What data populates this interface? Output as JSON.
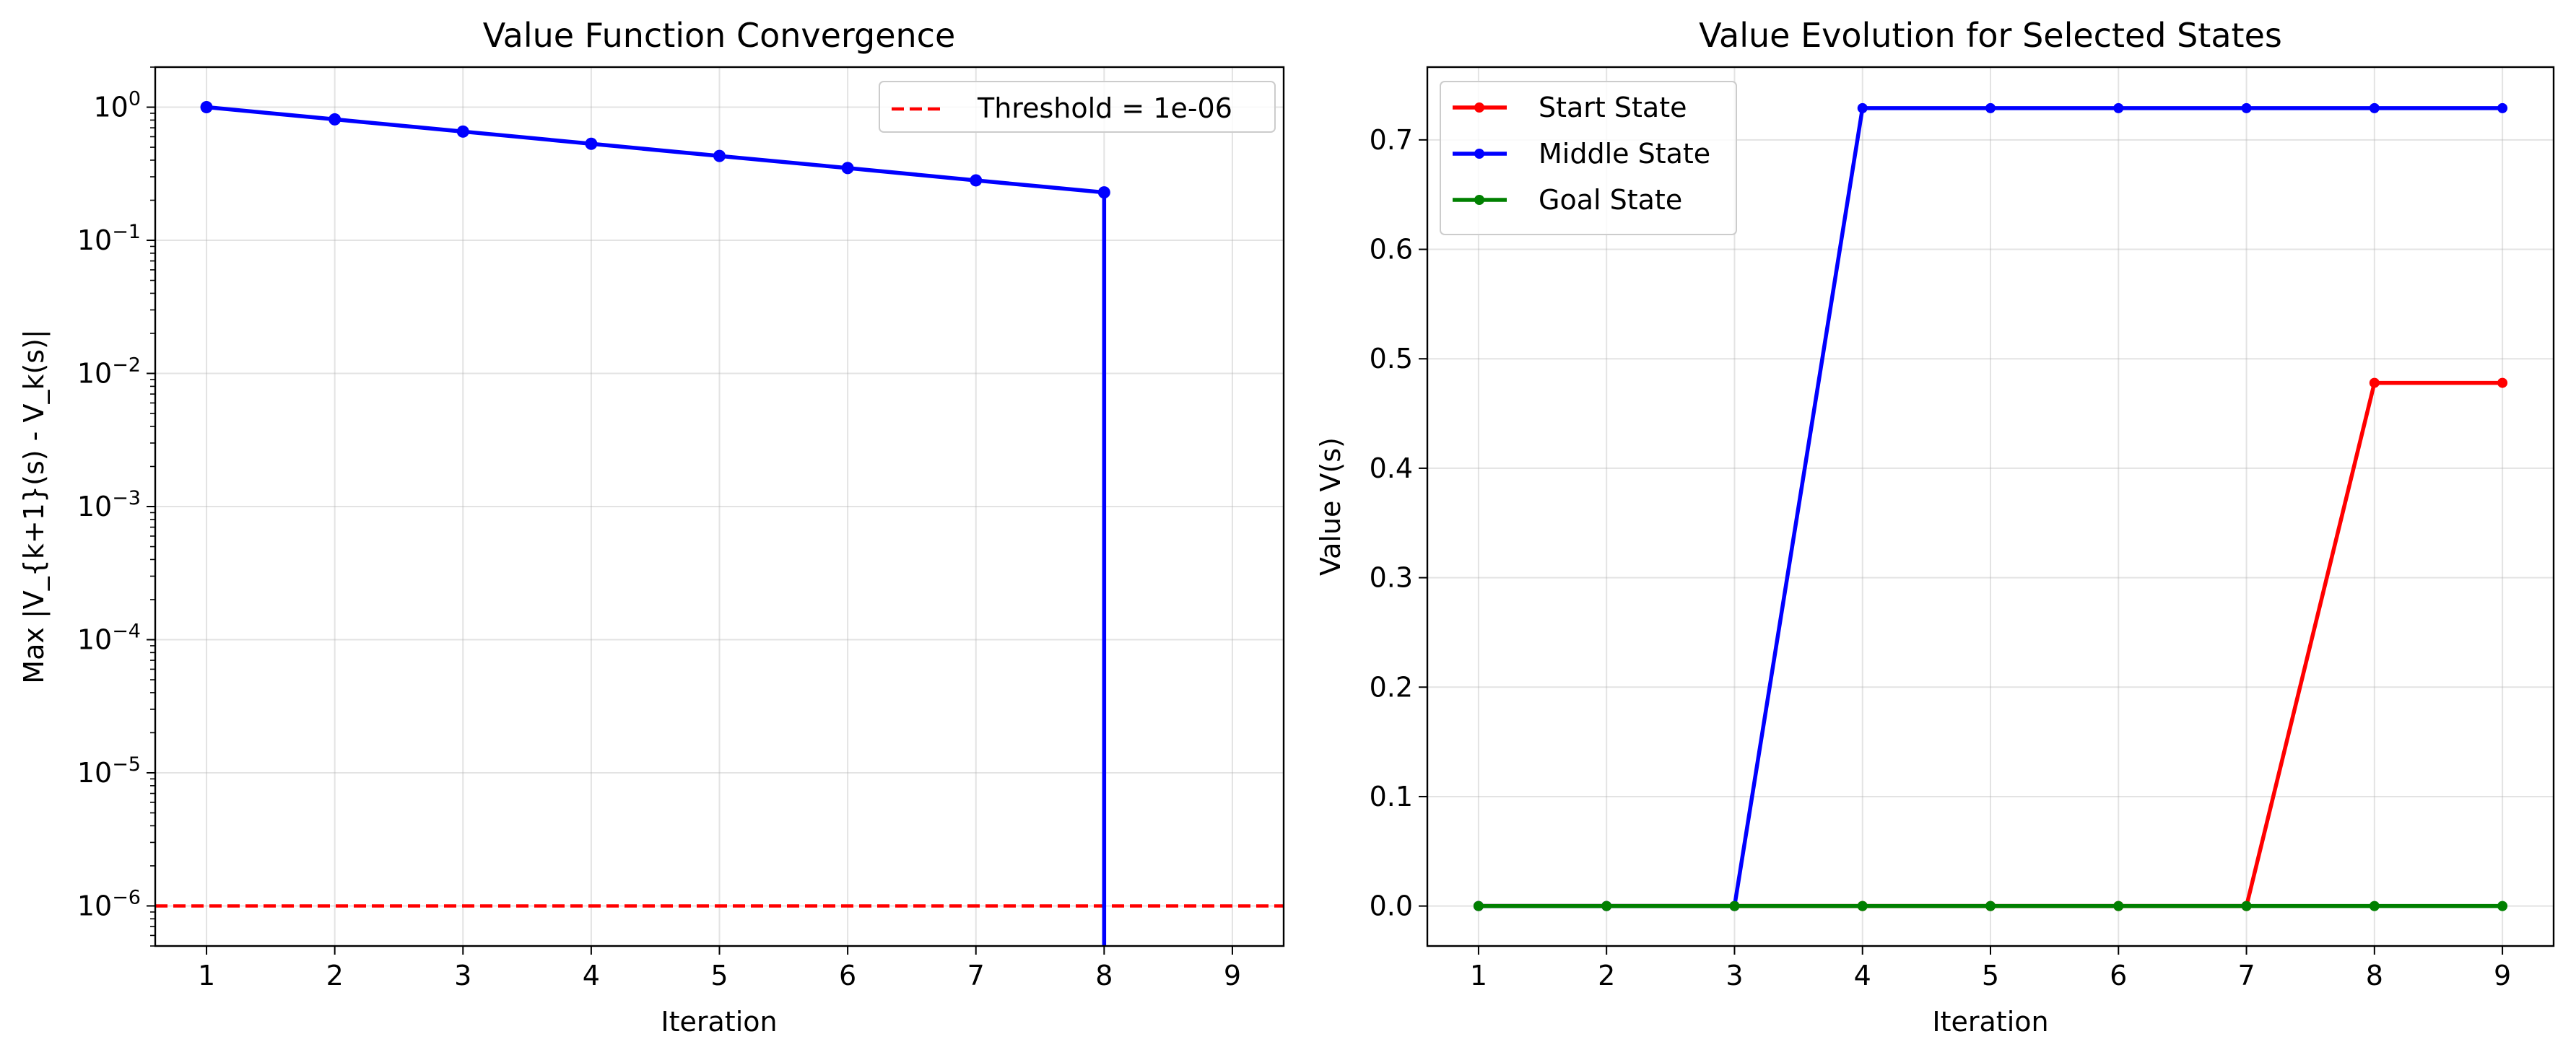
{
  "chart_data": [
    {
      "type": "line",
      "title": "Value Function Convergence",
      "xlabel": "Iteration",
      "ylabel": "Max |V_{k+1}(s) - V_k(s)|",
      "yscale": "log",
      "xlim": [
        0.6,
        9.4
      ],
      "ylim": [
        5e-07,
        2
      ],
      "xticks": [
        "1",
        "2",
        "3",
        "4",
        "5",
        "6",
        "7",
        "8",
        "9"
      ],
      "yticks": [
        {
          "value": 1,
          "base": "10",
          "exp": "0"
        },
        {
          "value": 0.1,
          "base": "10",
          "exp": "−1"
        },
        {
          "value": 0.01,
          "base": "10",
          "exp": "−2"
        },
        {
          "value": 0.001,
          "base": "10",
          "exp": "−3"
        },
        {
          "value": 0.0001,
          "base": "10",
          "exp": "−4"
        },
        {
          "value": 1e-05,
          "base": "10",
          "exp": "−5"
        },
        {
          "value": 1e-06,
          "base": "10",
          "exp": "−6"
        }
      ],
      "grid": true,
      "legend_position": "upper right",
      "series": [
        {
          "color": "#0000ff",
          "x": [
            1,
            2,
            3,
            4,
            5,
            6,
            7,
            8,
            9
          ],
          "values": [
            1.0,
            0.81,
            0.656,
            0.531,
            0.43,
            0.349,
            0.282,
            0.229,
            0
          ]
        }
      ],
      "threshold": {
        "label": "Threshold = 1e-06",
        "value": 1e-06,
        "color": "#ff0000",
        "style": "dashed"
      }
    },
    {
      "type": "line",
      "title": "Value Evolution for Selected States",
      "xlabel": "Iteration",
      "ylabel": "Value V(s)",
      "xlim": [
        0.6,
        9.4
      ],
      "ylim": [
        -0.0365,
        0.7665
      ],
      "xticks": [
        "1",
        "2",
        "3",
        "4",
        "5",
        "6",
        "7",
        "8",
        "9"
      ],
      "yticks": [
        "0.0",
        "0.1",
        "0.2",
        "0.3",
        "0.4",
        "0.5",
        "0.6",
        "0.7"
      ],
      "grid": true,
      "legend_position": "upper left",
      "series": [
        {
          "name": "Start State",
          "color": "#ff0000",
          "x": [
            1,
            2,
            3,
            4,
            5,
            6,
            7,
            8,
            9
          ],
          "values": [
            0,
            0,
            0,
            0,
            0,
            0,
            0,
            0.478,
            0.478
          ]
        },
        {
          "name": "Middle State",
          "color": "#0000ff",
          "x": [
            1,
            2,
            3,
            4,
            5,
            6,
            7,
            8,
            9
          ],
          "values": [
            0,
            0,
            0,
            0.729,
            0.729,
            0.729,
            0.729,
            0.729,
            0.729
          ]
        },
        {
          "name": "Goal State",
          "color": "#008000",
          "x": [
            1,
            2,
            3,
            4,
            5,
            6,
            7,
            8,
            9
          ],
          "values": [
            0,
            0,
            0,
            0,
            0,
            0,
            0,
            0,
            0
          ]
        }
      ]
    }
  ]
}
